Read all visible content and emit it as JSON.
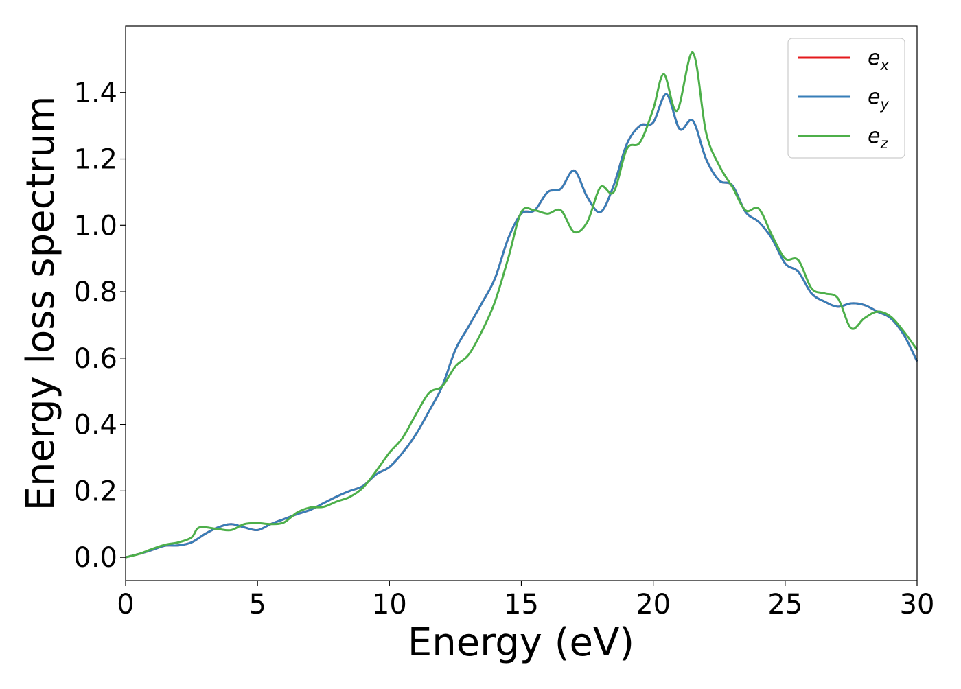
{
  "chart_data": {
    "type": "line",
    "xlabel": "Energy (eV)",
    "ylabel": "Energy loss spectrum",
    "xlim": [
      0,
      30
    ],
    "ylim": [
      -0.07,
      1.6
    ],
    "x_ticks": [
      "0",
      "5",
      "10",
      "15",
      "20",
      "25",
      "30"
    ],
    "y_ticks": [
      "0.0",
      "0.2",
      "0.4",
      "0.6",
      "0.8",
      "1.0",
      "1.2",
      "1.4"
    ],
    "grid": false,
    "legend_position": "top-right",
    "series": [
      {
        "name": "e",
        "subscript": "x",
        "color": "#e41a1c",
        "points": [
          [
            0,
            0
          ],
          [
            0.5,
            0.01
          ],
          [
            1,
            0.022
          ],
          [
            1.5,
            0.035
          ],
          [
            2,
            0.036
          ],
          [
            2.5,
            0.045
          ],
          [
            3,
            0.07
          ],
          [
            3.5,
            0.09
          ],
          [
            4,
            0.1
          ],
          [
            4.5,
            0.09
          ],
          [
            5,
            0.082
          ],
          [
            5.5,
            0.1
          ],
          [
            6,
            0.115
          ],
          [
            6.5,
            0.13
          ],
          [
            7,
            0.143
          ],
          [
            7.5,
            0.163
          ],
          [
            8,
            0.183
          ],
          [
            8.5,
            0.2
          ],
          [
            9,
            0.215
          ],
          [
            9.5,
            0.25
          ],
          [
            10,
            0.272
          ],
          [
            10.5,
            0.315
          ],
          [
            11,
            0.37
          ],
          [
            11.5,
            0.44
          ],
          [
            12,
            0.515
          ],
          [
            12.5,
            0.625
          ],
          [
            13,
            0.695
          ],
          [
            13.5,
            0.765
          ],
          [
            14,
            0.84
          ],
          [
            14.5,
            0.96
          ],
          [
            15,
            1.035
          ],
          [
            15.5,
            1.045
          ],
          [
            16,
            1.1
          ],
          [
            16.5,
            1.11
          ],
          [
            17,
            1.165
          ],
          [
            17.5,
            1.085
          ],
          [
            18,
            1.04
          ],
          [
            18.5,
            1.12
          ],
          [
            19,
            1.245
          ],
          [
            19.5,
            1.3
          ],
          [
            20,
            1.31
          ],
          [
            20.5,
            1.395
          ],
          [
            21,
            1.29
          ],
          [
            21.5,
            1.315
          ],
          [
            22,
            1.2
          ],
          [
            22.5,
            1.135
          ],
          [
            23,
            1.12
          ],
          [
            23.5,
            1.04
          ],
          [
            24,
            1.01
          ],
          [
            24.5,
            0.96
          ],
          [
            25,
            0.885
          ],
          [
            25.5,
            0.86
          ],
          [
            26,
            0.795
          ],
          [
            26.5,
            0.77
          ],
          [
            27,
            0.755
          ],
          [
            27.5,
            0.765
          ],
          [
            28,
            0.76
          ],
          [
            28.5,
            0.74
          ],
          [
            29,
            0.72
          ],
          [
            29.5,
            0.67
          ],
          [
            30,
            0.59
          ]
        ]
      },
      {
        "name": "e",
        "subscript": "y",
        "color": "#377eb8",
        "points": [
          [
            0,
            0
          ],
          [
            0.5,
            0.01
          ],
          [
            1,
            0.022
          ],
          [
            1.5,
            0.035
          ],
          [
            2,
            0.036
          ],
          [
            2.5,
            0.045
          ],
          [
            3,
            0.07
          ],
          [
            3.5,
            0.09
          ],
          [
            4,
            0.1
          ],
          [
            4.5,
            0.09
          ],
          [
            5,
            0.082
          ],
          [
            5.5,
            0.1
          ],
          [
            6,
            0.115
          ],
          [
            6.5,
            0.13
          ],
          [
            7,
            0.143
          ],
          [
            7.5,
            0.163
          ],
          [
            8,
            0.183
          ],
          [
            8.5,
            0.2
          ],
          [
            9,
            0.215
          ],
          [
            9.5,
            0.25
          ],
          [
            10,
            0.272
          ],
          [
            10.5,
            0.315
          ],
          [
            11,
            0.37
          ],
          [
            11.5,
            0.44
          ],
          [
            12,
            0.515
          ],
          [
            12.5,
            0.625
          ],
          [
            13,
            0.695
          ],
          [
            13.5,
            0.765
          ],
          [
            14,
            0.84
          ],
          [
            14.5,
            0.96
          ],
          [
            15,
            1.035
          ],
          [
            15.5,
            1.045
          ],
          [
            16,
            1.1
          ],
          [
            16.5,
            1.11
          ],
          [
            17,
            1.165
          ],
          [
            17.5,
            1.085
          ],
          [
            18,
            1.04
          ],
          [
            18.5,
            1.12
          ],
          [
            19,
            1.245
          ],
          [
            19.5,
            1.3
          ],
          [
            20,
            1.31
          ],
          [
            20.5,
            1.395
          ],
          [
            21,
            1.29
          ],
          [
            21.5,
            1.315
          ],
          [
            22,
            1.2
          ],
          [
            22.5,
            1.135
          ],
          [
            23,
            1.12
          ],
          [
            23.5,
            1.04
          ],
          [
            24,
            1.01
          ],
          [
            24.5,
            0.96
          ],
          [
            25,
            0.885
          ],
          [
            25.5,
            0.86
          ],
          [
            26,
            0.795
          ],
          [
            26.5,
            0.77
          ],
          [
            27,
            0.755
          ],
          [
            27.5,
            0.765
          ],
          [
            28,
            0.76
          ],
          [
            28.5,
            0.74
          ],
          [
            29,
            0.72
          ],
          [
            29.5,
            0.67
          ],
          [
            30,
            0.59
          ]
        ]
      },
      {
        "name": "e",
        "subscript": "z",
        "color": "#4daf4a",
        "points": [
          [
            0,
            0
          ],
          [
            0.5,
            0.01
          ],
          [
            1,
            0.025
          ],
          [
            1.5,
            0.038
          ],
          [
            2,
            0.045
          ],
          [
            2.5,
            0.06
          ],
          [
            2.8,
            0.09
          ],
          [
            3.5,
            0.085
          ],
          [
            4,
            0.082
          ],
          [
            4.5,
            0.1
          ],
          [
            5,
            0.103
          ],
          [
            5.5,
            0.1
          ],
          [
            6,
            0.105
          ],
          [
            6.5,
            0.135
          ],
          [
            7,
            0.15
          ],
          [
            7.5,
            0.152
          ],
          [
            8,
            0.168
          ],
          [
            8.5,
            0.182
          ],
          [
            9,
            0.21
          ],
          [
            9.5,
            0.26
          ],
          [
            10,
            0.315
          ],
          [
            10.5,
            0.36
          ],
          [
            11,
            0.43
          ],
          [
            11.5,
            0.495
          ],
          [
            12,
            0.515
          ],
          [
            12.5,
            0.575
          ],
          [
            13,
            0.61
          ],
          [
            13.5,
            0.68
          ],
          [
            14,
            0.77
          ],
          [
            14.5,
            0.9
          ],
          [
            15,
            1.04
          ],
          [
            15.5,
            1.045
          ],
          [
            16,
            1.035
          ],
          [
            16.5,
            1.045
          ],
          [
            17,
            0.98
          ],
          [
            17.5,
            1.01
          ],
          [
            18,
            1.115
          ],
          [
            18.5,
            1.1
          ],
          [
            19,
            1.23
          ],
          [
            19.5,
            1.25
          ],
          [
            20,
            1.35
          ],
          [
            20.4,
            1.455
          ],
          [
            20.9,
            1.345
          ],
          [
            21.5,
            1.52
          ],
          [
            22,
            1.28
          ],
          [
            22.5,
            1.18
          ],
          [
            23,
            1.115
          ],
          [
            23.5,
            1.045
          ],
          [
            24,
            1.05
          ],
          [
            24.5,
            0.97
          ],
          [
            25,
            0.9
          ],
          [
            25.5,
            0.895
          ],
          [
            26,
            0.81
          ],
          [
            26.5,
            0.795
          ],
          [
            27,
            0.78
          ],
          [
            27.5,
            0.69
          ],
          [
            28,
            0.72
          ],
          [
            28.5,
            0.74
          ],
          [
            29,
            0.725
          ],
          [
            29.5,
            0.68
          ],
          [
            30,
            0.625
          ]
        ]
      }
    ]
  }
}
